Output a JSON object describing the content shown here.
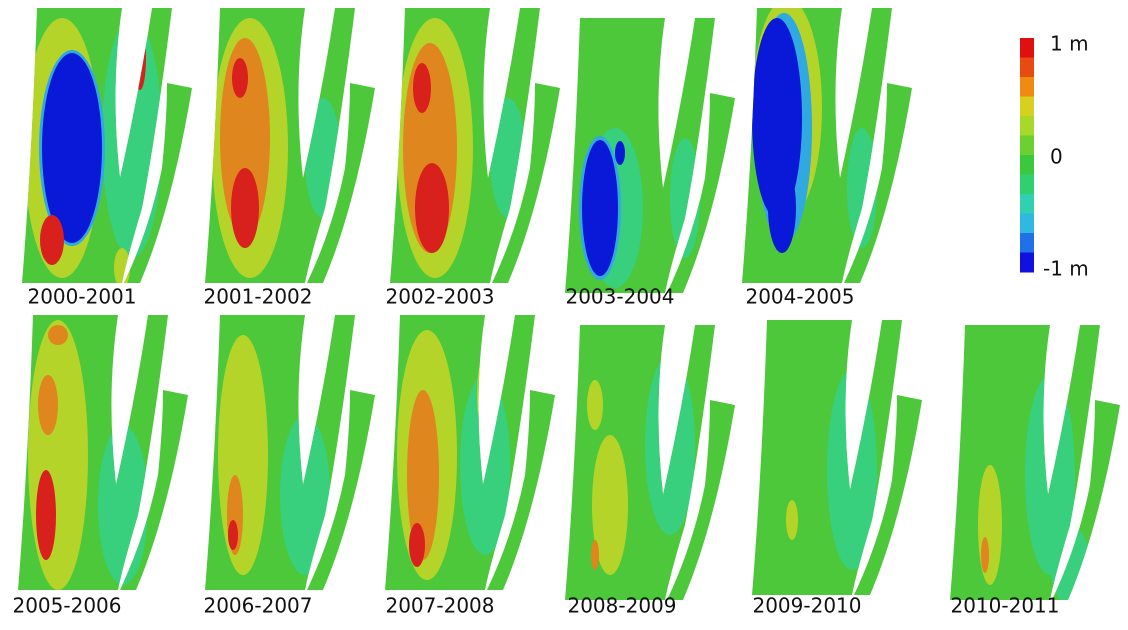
{
  "panels": [
    {
      "label": "2000-2001"
    },
    {
      "label": "2001-2002"
    },
    {
      "label": "2002-2003"
    },
    {
      "label": "2003-2004"
    },
    {
      "label": "2004-2005"
    },
    {
      "label": "2005-2006"
    },
    {
      "label": "2006-2007"
    },
    {
      "label": "2007-2008"
    },
    {
      "label": "2008-2009"
    },
    {
      "label": "2009-2010"
    },
    {
      "label": "2010-2011"
    }
  ],
  "legend": {
    "labels": [
      "1 m",
      "0",
      "-1 m"
    ]
  }
}
